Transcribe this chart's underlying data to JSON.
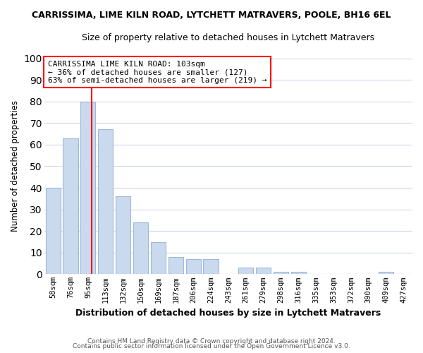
{
  "title": "CARRISSIMA, LIME KILN ROAD, LYTCHETT MATRAVERS, POOLE, BH16 6EL",
  "subtitle": "Size of property relative to detached houses in Lytchett Matravers",
  "xlabel": "Distribution of detached houses by size in Lytchett Matravers",
  "ylabel": "Number of detached properties",
  "bar_labels": [
    "58sqm",
    "76sqm",
    "95sqm",
    "113sqm",
    "132sqm",
    "150sqm",
    "169sqm",
    "187sqm",
    "206sqm",
    "224sqm",
    "243sqm",
    "261sqm",
    "279sqm",
    "298sqm",
    "316sqm",
    "335sqm",
    "353sqm",
    "372sqm",
    "390sqm",
    "409sqm",
    "427sqm"
  ],
  "bar_values": [
    40,
    63,
    80,
    67,
    36,
    24,
    15,
    8,
    7,
    7,
    0,
    3,
    3,
    1,
    1,
    0,
    0,
    0,
    0,
    1,
    0
  ],
  "bar_color": "#c9d9ee",
  "bar_edge_color": "#a0b8d8",
  "marker_line_label": "CARRISSIMA LIME KILN ROAD: 103sqm",
  "annotation_line1": "← 36% of detached houses are smaller (127)",
  "annotation_line2": "63% of semi-detached houses are larger (219) →",
  "ylim": [
    0,
    100
  ],
  "yticks": [
    0,
    10,
    20,
    30,
    40,
    50,
    60,
    70,
    80,
    90,
    100
  ],
  "background_color": "#ffffff",
  "grid_color": "#d0d8e8",
  "footer_line1": "Contains HM Land Registry data © Crown copyright and database right 2024.",
  "footer_line2": "Contains public sector information licensed under the Open Government Licence v3.0."
}
